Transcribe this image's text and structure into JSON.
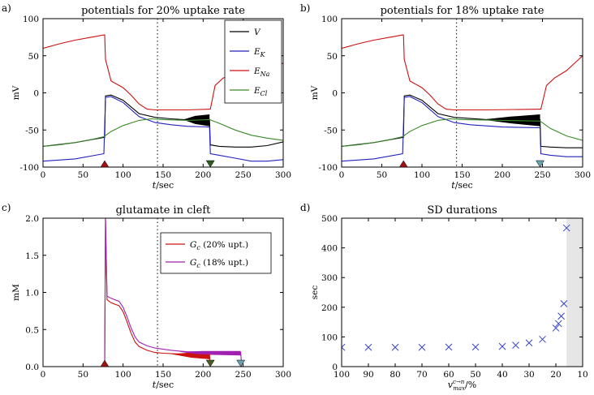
{
  "panel_letters": [
    "a)",
    "b)",
    "c)",
    "d)"
  ],
  "chart_data": [
    {
      "type": "line",
      "panel": "a)",
      "title": "potentials for 20% uptake rate",
      "xlabel": "t/sec",
      "ylabel": "mV",
      "xlim": [
        0,
        300
      ],
      "ylim": [
        -100,
        100
      ],
      "xticks": [
        0,
        50,
        100,
        150,
        200,
        250,
        300
      ],
      "yticks": [
        -100,
        -50,
        0,
        50,
        100
      ],
      "vline": 143,
      "legend_position": "top-right",
      "markers": [
        {
          "x": 77,
          "direction": "up",
          "color": "#a01010"
        },
        {
          "x": 209,
          "direction": "down",
          "color": "#2f5f1f"
        }
      ],
      "series": [
        {
          "name": "V",
          "color": "#000000",
          "x": [
            0,
            40,
            76,
            77,
            78,
            85,
            100,
            120,
            140,
            160,
            175,
            208,
            209,
            220,
            240,
            260,
            280,
            300
          ],
          "y": [
            -72,
            -67,
            -60,
            -60,
            -4,
            -3,
            -10,
            -28,
            -33,
            -35,
            -36,
            -36,
            -70,
            -72,
            -73,
            -73,
            -71,
            -66
          ]
        },
        {
          "name": "E_K",
          "color": "#2222bb",
          "x": [
            0,
            40,
            76,
            78,
            85,
            100,
            120,
            140,
            160,
            180,
            208,
            209,
            220,
            240,
            260,
            280,
            300
          ],
          "y": [
            -92,
            -89,
            -82,
            -6,
            -5,
            -13,
            -32,
            -40,
            -43,
            -45,
            -46,
            -82,
            -84,
            -88,
            -92,
            -92,
            -90
          ]
        },
        {
          "name": "E_Na",
          "color": "#cc1111",
          "x": [
            0,
            20,
            40,
            60,
            76,
            77,
            78,
            85,
            100,
            110,
            120,
            130,
            140,
            160,
            180,
            208,
            209,
            215,
            225,
            240,
            260,
            280,
            300
          ],
          "y": [
            60,
            66,
            71,
            75,
            78,
            78,
            45,
            16,
            7,
            -3,
            -15,
            -22,
            -23,
            -23,
            -23,
            -22,
            -22,
            10,
            20,
            26,
            30,
            34,
            40
          ]
        },
        {
          "name": "E_Cl",
          "color": "#3a8a2a",
          "x": [
            0,
            20,
            40,
            60,
            76,
            85,
            100,
            120,
            135,
            150,
            180,
            208,
            220,
            240,
            260,
            280,
            300
          ],
          "y": [
            -72,
            -70,
            -67,
            -63,
            -59,
            -52,
            -44,
            -37,
            -35,
            -36,
            -37,
            -36,
            -41,
            -50,
            -57,
            -61,
            -64
          ]
        }
      ]
    },
    {
      "type": "line",
      "panel": "b)",
      "title": "potentials for 18% uptake rate",
      "xlabel": "t/sec",
      "ylabel": "mV",
      "xlim": [
        0,
        300
      ],
      "ylim": [
        -100,
        100
      ],
      "xticks": [
        0,
        50,
        100,
        150,
        200,
        250,
        300
      ],
      "yticks": [
        -100,
        -50,
        0,
        50,
        100
      ],
      "vline": 143,
      "markers": [
        {
          "x": 77,
          "direction": "up",
          "color": "#a01010"
        },
        {
          "x": 247,
          "direction": "down",
          "color": "#6aa0b0"
        }
      ],
      "series": [
        {
          "name": "V",
          "color": "#000000",
          "x": [
            0,
            40,
            76,
            77,
            78,
            85,
            100,
            120,
            140,
            180,
            247,
            248,
            260,
            280,
            300
          ],
          "y": [
            -72,
            -67,
            -60,
            -60,
            -4,
            -3,
            -10,
            -28,
            -33,
            -36,
            -36,
            -72,
            -73,
            -74,
            -74
          ]
        },
        {
          "name": "E_K",
          "color": "#2222bb",
          "x": [
            0,
            40,
            76,
            78,
            85,
            100,
            120,
            140,
            160,
            200,
            247,
            248,
            260,
            280,
            300
          ],
          "y": [
            -92,
            -89,
            -82,
            -6,
            -5,
            -13,
            -32,
            -40,
            -43,
            -46,
            -47,
            -82,
            -84,
            -86,
            -86
          ]
        },
        {
          "name": "E_Na",
          "color": "#cc1111",
          "x": [
            0,
            20,
            40,
            60,
            76,
            77,
            78,
            85,
            100,
            110,
            120,
            130,
            140,
            180,
            247,
            248,
            255,
            265,
            280,
            290,
            300
          ],
          "y": [
            60,
            66,
            71,
            75,
            78,
            78,
            45,
            16,
            7,
            -3,
            -15,
            -22,
            -23,
            -23,
            -22,
            -22,
            10,
            20,
            30,
            40,
            50
          ]
        },
        {
          "name": "E_Cl",
          "color": "#3a8a2a",
          "x": [
            0,
            20,
            40,
            60,
            76,
            85,
            100,
            120,
            135,
            150,
            200,
            247,
            260,
            280,
            300
          ],
          "y": [
            -72,
            -70,
            -67,
            -63,
            -59,
            -52,
            -44,
            -37,
            -35,
            -36,
            -37,
            -38,
            -48,
            -58,
            -64
          ]
        }
      ]
    },
    {
      "type": "line",
      "panel": "c)",
      "title": "glutamate in cleft",
      "xlabel": "t/sec",
      "ylabel": "mM",
      "xlim": [
        0,
        300
      ],
      "ylim": [
        0,
        2.0
      ],
      "xticks": [
        0,
        50,
        100,
        150,
        200,
        250,
        300
      ],
      "yticks": [
        0.0,
        0.5,
        1.0,
        1.5,
        2.0
      ],
      "vline": 143,
      "legend_position": "top-right",
      "markers": [
        {
          "x": 77,
          "direction": "up",
          "color": "#a01010"
        },
        {
          "x": 209,
          "direction": "down",
          "color": "#4a5f1f"
        },
        {
          "x": 247,
          "direction": "down",
          "color": "#6aa0b0"
        }
      ],
      "series": [
        {
          "name": "G_c (20% upt.)",
          "color": "#cc1111",
          "x": [
            77,
            78,
            80,
            85,
            95,
            100,
            105,
            110,
            115,
            120,
            130,
            140,
            150,
            170,
            180,
            208,
            209,
            300
          ],
          "y": [
            0,
            2.0,
            0.9,
            0.86,
            0.82,
            0.74,
            0.6,
            0.45,
            0.33,
            0.27,
            0.22,
            0.19,
            0.18,
            0.17,
            0.16,
            0.16,
            0.0,
            0.0
          ]
        },
        {
          "name": "G_c (18% upt.)",
          "color": "#a020b0",
          "x": [
            77,
            78,
            80,
            85,
            95,
            100,
            105,
            110,
            115,
            120,
            130,
            140,
            160,
            180,
            247,
            248,
            300
          ],
          "y": [
            0,
            2.0,
            0.95,
            0.92,
            0.88,
            0.8,
            0.67,
            0.52,
            0.4,
            0.33,
            0.28,
            0.25,
            0.22,
            0.2,
            0.19,
            0.0,
            0.0
          ]
        }
      ]
    },
    {
      "type": "scatter",
      "panel": "d)",
      "title": "SD durations",
      "xlabel": "v^{c→n}_{max}/%",
      "ylabel": "sec",
      "xlim": [
        100,
        10
      ],
      "ylim": [
        0,
        500
      ],
      "xticks": [
        100,
        90,
        80,
        70,
        60,
        50,
        40,
        30,
        20,
        10
      ],
      "yticks": [
        0,
        100,
        200,
        300,
        400,
        500
      ],
      "shaded_region": [
        16,
        10
      ],
      "marker": "x",
      "color": "#3344cc",
      "x": [
        100,
        90,
        80,
        70,
        60,
        50,
        40,
        35,
        30,
        25,
        20,
        19,
        18,
        17,
        16
      ],
      "y": [
        65,
        65,
        65,
        65,
        66,
        66,
        68,
        72,
        80,
        92,
        130,
        145,
        170,
        212,
        467
      ]
    }
  ]
}
